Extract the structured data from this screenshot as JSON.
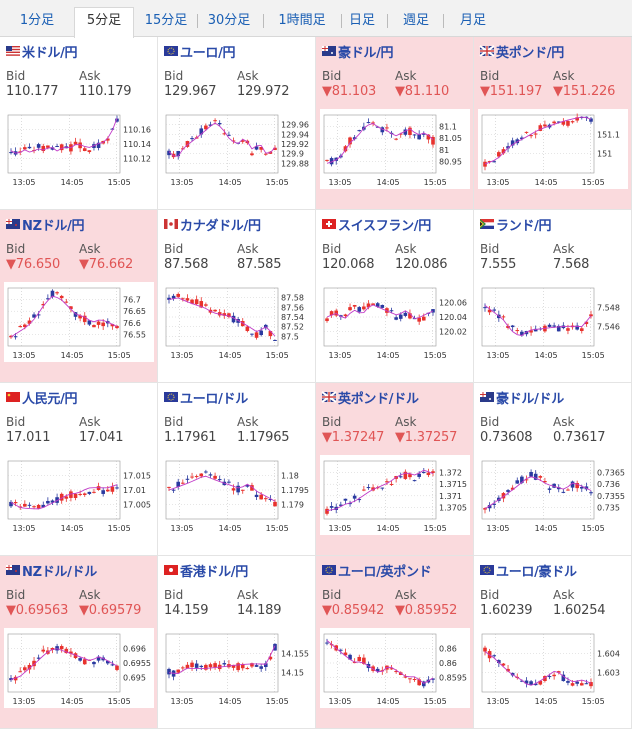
{
  "tabs": [
    {
      "label": "1分足",
      "active": false
    },
    {
      "label": "5分足",
      "active": true
    },
    {
      "label": "15分足",
      "active": false
    },
    {
      "label": "30分足",
      "active": false
    },
    {
      "label": "1時間足",
      "active": false
    },
    {
      "label": "日足",
      "active": false
    },
    {
      "label": "週足",
      "active": false
    },
    {
      "label": "月足",
      "active": false
    }
  ],
  "bid_label": "Bid",
  "ask_label": "Ask",
  "x_ticks": [
    "13:05",
    "14:05",
    "15:05"
  ],
  "colors": {
    "up": "#e8322d",
    "down": "#2a3aa0",
    "ma": "#c13bc8",
    "highlight": "#fadadd",
    "pair": "#2a4aa8",
    "down_text": "#e05555"
  },
  "cells": [
    {
      "pair": "米ドル/円",
      "flag": "us-flag",
      "bid": "110.177",
      "ask": "110.179",
      "down": false,
      "hl": false,
      "y_ticks": [
        "110.16",
        "110.14",
        "110.12"
      ],
      "y_range": [
        110.11,
        110.175
      ],
      "trend": [
        110.135,
        110.132,
        110.138,
        110.135,
        110.14,
        110.138,
        110.142,
        110.136,
        110.14,
        110.138,
        110.142,
        110.138,
        110.136,
        110.14,
        110.142,
        110.15,
        110.17
      ]
    },
    {
      "pair": "ユーロ/円",
      "flag": "eu-flag",
      "bid": "129.967",
      "ask": "129.972",
      "down": false,
      "hl": false,
      "y_ticks": [
        "129.96",
        "129.94",
        "129.92",
        "129.9",
        "129.88"
      ],
      "y_range": [
        129.875,
        129.97
      ],
      "trend": [
        129.91,
        129.9,
        129.92,
        129.93,
        129.94,
        129.95,
        129.96,
        129.95,
        129.93,
        129.92,
        129.93,
        129.91,
        129.92,
        129.9,
        129.915
      ]
    },
    {
      "pair": "豪ドル/円",
      "flag": "au-flag",
      "bid": "▼81.103",
      "ask": "▼81.110",
      "down": true,
      "hl": true,
      "y_ticks": [
        "81.1",
        "81.05",
        "81",
        "80.95"
      ],
      "y_range": [
        80.94,
        81.12
      ],
      "trend": [
        80.97,
        80.98,
        81.0,
        81.04,
        81.06,
        81.09,
        81.1,
        81.08,
        81.07,
        81.05,
        81.06,
        81.07,
        81.05,
        81.06,
        81.04
      ]
    },
    {
      "pair": "英ポンド/円",
      "flag": "gb-flag",
      "bid": "▼151.197",
      "ask": "▼151.226",
      "down": true,
      "hl": true,
      "y_ticks": [
        "151.1",
        "151"
      ],
      "y_range": [
        150.9,
        151.22
      ],
      "trend": [
        150.95,
        150.97,
        151.0,
        151.05,
        151.08,
        151.1,
        151.12,
        151.14,
        151.15,
        151.16,
        151.17,
        151.18,
        151.19,
        151.2,
        151.19
      ]
    },
    {
      "pair": "NZドル/円",
      "flag": "nz-flag",
      "bid": "▼76.650",
      "ask": "▼76.662",
      "down": true,
      "hl": true,
      "y_ticks": [
        "76.7",
        "76.65",
        "76.6",
        "76.55"
      ],
      "y_range": [
        76.53,
        76.72
      ],
      "trend": [
        76.56,
        76.58,
        76.6,
        76.63,
        76.67,
        76.7,
        76.69,
        76.66,
        76.63,
        76.62,
        76.6,
        76.61,
        76.6,
        76.59
      ]
    },
    {
      "pair": "カナダドル/円",
      "flag": "ca-flag",
      "bid": "87.568",
      "ask": "87.585",
      "down": false,
      "hl": false,
      "y_ticks": [
        "87.58",
        "87.56",
        "87.54",
        "87.52",
        "87.5"
      ],
      "y_range": [
        87.49,
        87.59
      ],
      "trend": [
        87.57,
        87.575,
        87.57,
        87.565,
        87.56,
        87.55,
        87.545,
        87.54,
        87.53,
        87.52,
        87.51,
        87.52,
        87.505
      ]
    },
    {
      "pair": "スイスフラン/円",
      "flag": "ch-flag",
      "bid": "120.068",
      "ask": "120.086",
      "down": false,
      "hl": false,
      "y_ticks": [
        "120.06",
        "120.04",
        "120.02"
      ],
      "y_range": [
        120.01,
        120.07
      ],
      "trend": [
        120.04,
        120.045,
        120.04,
        120.05,
        120.045,
        120.055,
        120.05,
        120.045,
        120.04,
        120.045,
        120.035,
        120.04,
        120.045
      ]
    },
    {
      "pair": "ランド/円",
      "flag": "za-flag",
      "bid": "7.555",
      "ask": "7.568",
      "down": false,
      "hl": false,
      "y_ticks": [
        "7.548",
        "7.546"
      ],
      "y_range": [
        7.5445,
        7.5495
      ],
      "trend": [
        7.548,
        7.5475,
        7.547,
        7.546,
        7.5455,
        7.546,
        7.546,
        7.546,
        7.546,
        7.546,
        7.546,
        7.546,
        7.547
      ]
    },
    {
      "pair": "人民元/円",
      "flag": "cn-flag",
      "bid": "17.011",
      "ask": "17.041",
      "down": false,
      "hl": false,
      "y_ticks": [
        "17.015",
        "17.01",
        "17.005"
      ],
      "y_range": [
        17.003,
        17.017
      ],
      "trend": [
        17.007,
        17.006,
        17.006,
        17.006,
        17.007,
        17.008,
        17.009,
        17.009,
        17.01,
        17.01,
        17.01,
        17.011
      ]
    },
    {
      "pair": "ユーロ/ドル",
      "flag": "eu-flag",
      "bid": "1.17961",
      "ask": "1.17965",
      "down": false,
      "hl": false,
      "y_ticks": [
        "1.18",
        "1.1795",
        "1.179"
      ],
      "y_range": [
        1.1788,
        1.1802
      ],
      "trend": [
        1.1795,
        1.1796,
        1.1797,
        1.1798,
        1.1799,
        1.1798,
        1.1797,
        1.1796,
        1.1795,
        1.1796,
        1.1794,
        1.1793,
        1.1792
      ]
    },
    {
      "pair": "英ポンド/ドル",
      "flag": "gb-flag",
      "bid": "▼1.37247",
      "ask": "▼1.37257",
      "down": true,
      "hl": true,
      "y_ticks": [
        "1.372",
        "1.3715",
        "1.371",
        "1.3705"
      ],
      "y_range": [
        1.3703,
        1.3724
      ],
      "trend": [
        1.3706,
        1.3707,
        1.3709,
        1.371,
        1.3712,
        1.3714,
        1.3715,
        1.3716,
        1.3718,
        1.3719,
        1.3718,
        1.372,
        1.3719
      ]
    },
    {
      "pair": "豪ドル/ドル",
      "flag": "au-flag",
      "bid": "0.73608",
      "ask": "0.73617",
      "down": false,
      "hl": false,
      "y_ticks": [
        "0.7365",
        "0.736",
        "0.7355",
        "0.735"
      ],
      "y_range": [
        0.7349,
        0.7366
      ],
      "trend": [
        0.7352,
        0.7354,
        0.7356,
        0.7358,
        0.736,
        0.7362,
        0.7361,
        0.7359,
        0.7358,
        0.7357,
        0.7359,
        0.7358,
        0.7357
      ]
    },
    {
      "pair": "NZドル/ドル",
      "flag": "nz-flag",
      "bid": "▼0.69563",
      "ask": "▼0.69579",
      "down": true,
      "hl": true,
      "y_ticks": [
        "0.696",
        "0.6955",
        "0.695"
      ],
      "y_range": [
        0.6948,
        0.6962
      ],
      "trend": [
        0.6951,
        0.6952,
        0.6954,
        0.6956,
        0.6958,
        0.6959,
        0.6958,
        0.6957,
        0.6956,
        0.6955,
        0.6956,
        0.6955,
        0.6954
      ]
    },
    {
      "pair": "香港ドル/円",
      "flag": "hk-flag",
      "bid": "14.159",
      "ask": "14.189",
      "down": false,
      "hl": false,
      "y_ticks": [
        "14.155",
        "14.15"
      ],
      "y_range": [
        14.149,
        14.158
      ],
      "trend": [
        14.152,
        14.152,
        14.153,
        14.153,
        14.153,
        14.153,
        14.153,
        14.153,
        14.153,
        14.153,
        14.153,
        14.153,
        14.156
      ]
    },
    {
      "pair": "ユーロ/英ポンド",
      "flag": "eu-flag",
      "bid": "▼0.85942",
      "ask": "▼0.85952",
      "down": true,
      "hl": true,
      "y_ticks": [
        "0.86",
        "0.86",
        "0.8595"
      ],
      "y_range": [
        0.8593,
        0.8602
      ],
      "trend": [
        0.8601,
        0.86,
        0.8599,
        0.8598,
        0.8598,
        0.8597,
        0.8596,
        0.8597,
        0.8596,
        0.8595,
        0.8595,
        0.8594,
        0.8595
      ]
    },
    {
      "pair": "ユーロ/豪ドル",
      "flag": "eu-flag",
      "bid": "1.60239",
      "ask": "1.60254",
      "down": false,
      "hl": false,
      "y_ticks": [
        "1.604",
        "1.603"
      ],
      "y_range": [
        1.6022,
        1.6045
      ],
      "trend": [
        1.6038,
        1.6036,
        1.6033,
        1.603,
        1.6028,
        1.6025,
        1.6026,
        1.6028,
        1.603,
        1.6027,
        1.6025,
        1.6026,
        1.6025
      ]
    }
  ]
}
